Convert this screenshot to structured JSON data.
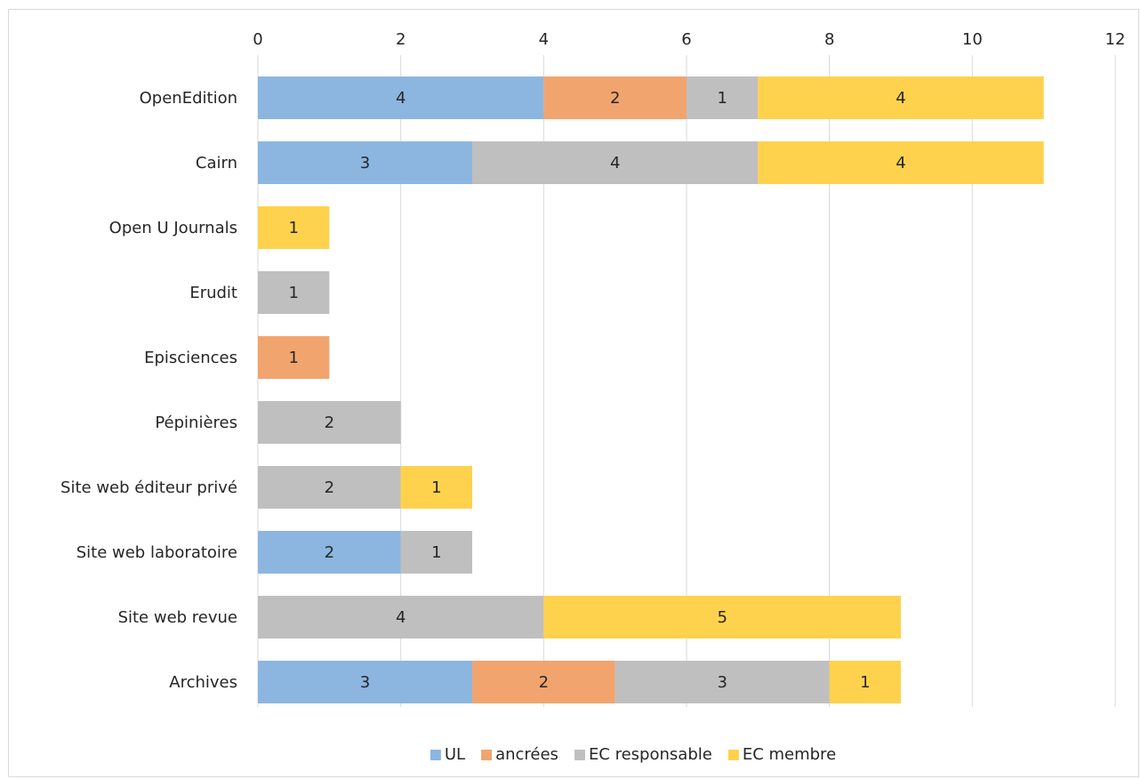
{
  "chart_data": {
    "type": "bar",
    "orientation": "horizontal",
    "stacked": true,
    "title": "",
    "xlabel": "",
    "ylabel": "",
    "xlim": [
      0,
      12
    ],
    "x_ticks": [
      "0",
      "2",
      "4",
      "6",
      "8",
      "10",
      "12"
    ],
    "x_axis_position": "top",
    "grid": true,
    "legend_position": "bottom",
    "categories": [
      "OpenEdition",
      "Cairn",
      "Open U Journals",
      "Erudit",
      "Episciences",
      "Pépinières",
      "Site web éditeur privé",
      "Site web laboratoire",
      "Site web revue",
      "Archives"
    ],
    "series": [
      {
        "name": "UL",
        "color": "#8cb6e0",
        "values": [
          4,
          3,
          0,
          0,
          0,
          0,
          0,
          2,
          0,
          3
        ]
      },
      {
        "name": "ancrées",
        "color": "#f2a46e",
        "values": [
          2,
          0,
          0,
          0,
          1,
          0,
          0,
          0,
          0,
          2
        ]
      },
      {
        "name": "EC responsable",
        "color": "#bfbfbf",
        "values": [
          1,
          4,
          0,
          1,
          0,
          2,
          2,
          1,
          4,
          3
        ]
      },
      {
        "name": "EC membre",
        "color": "#ffd24d",
        "values": [
          4,
          4,
          1,
          0,
          0,
          0,
          1,
          0,
          5,
          1
        ]
      }
    ]
  }
}
